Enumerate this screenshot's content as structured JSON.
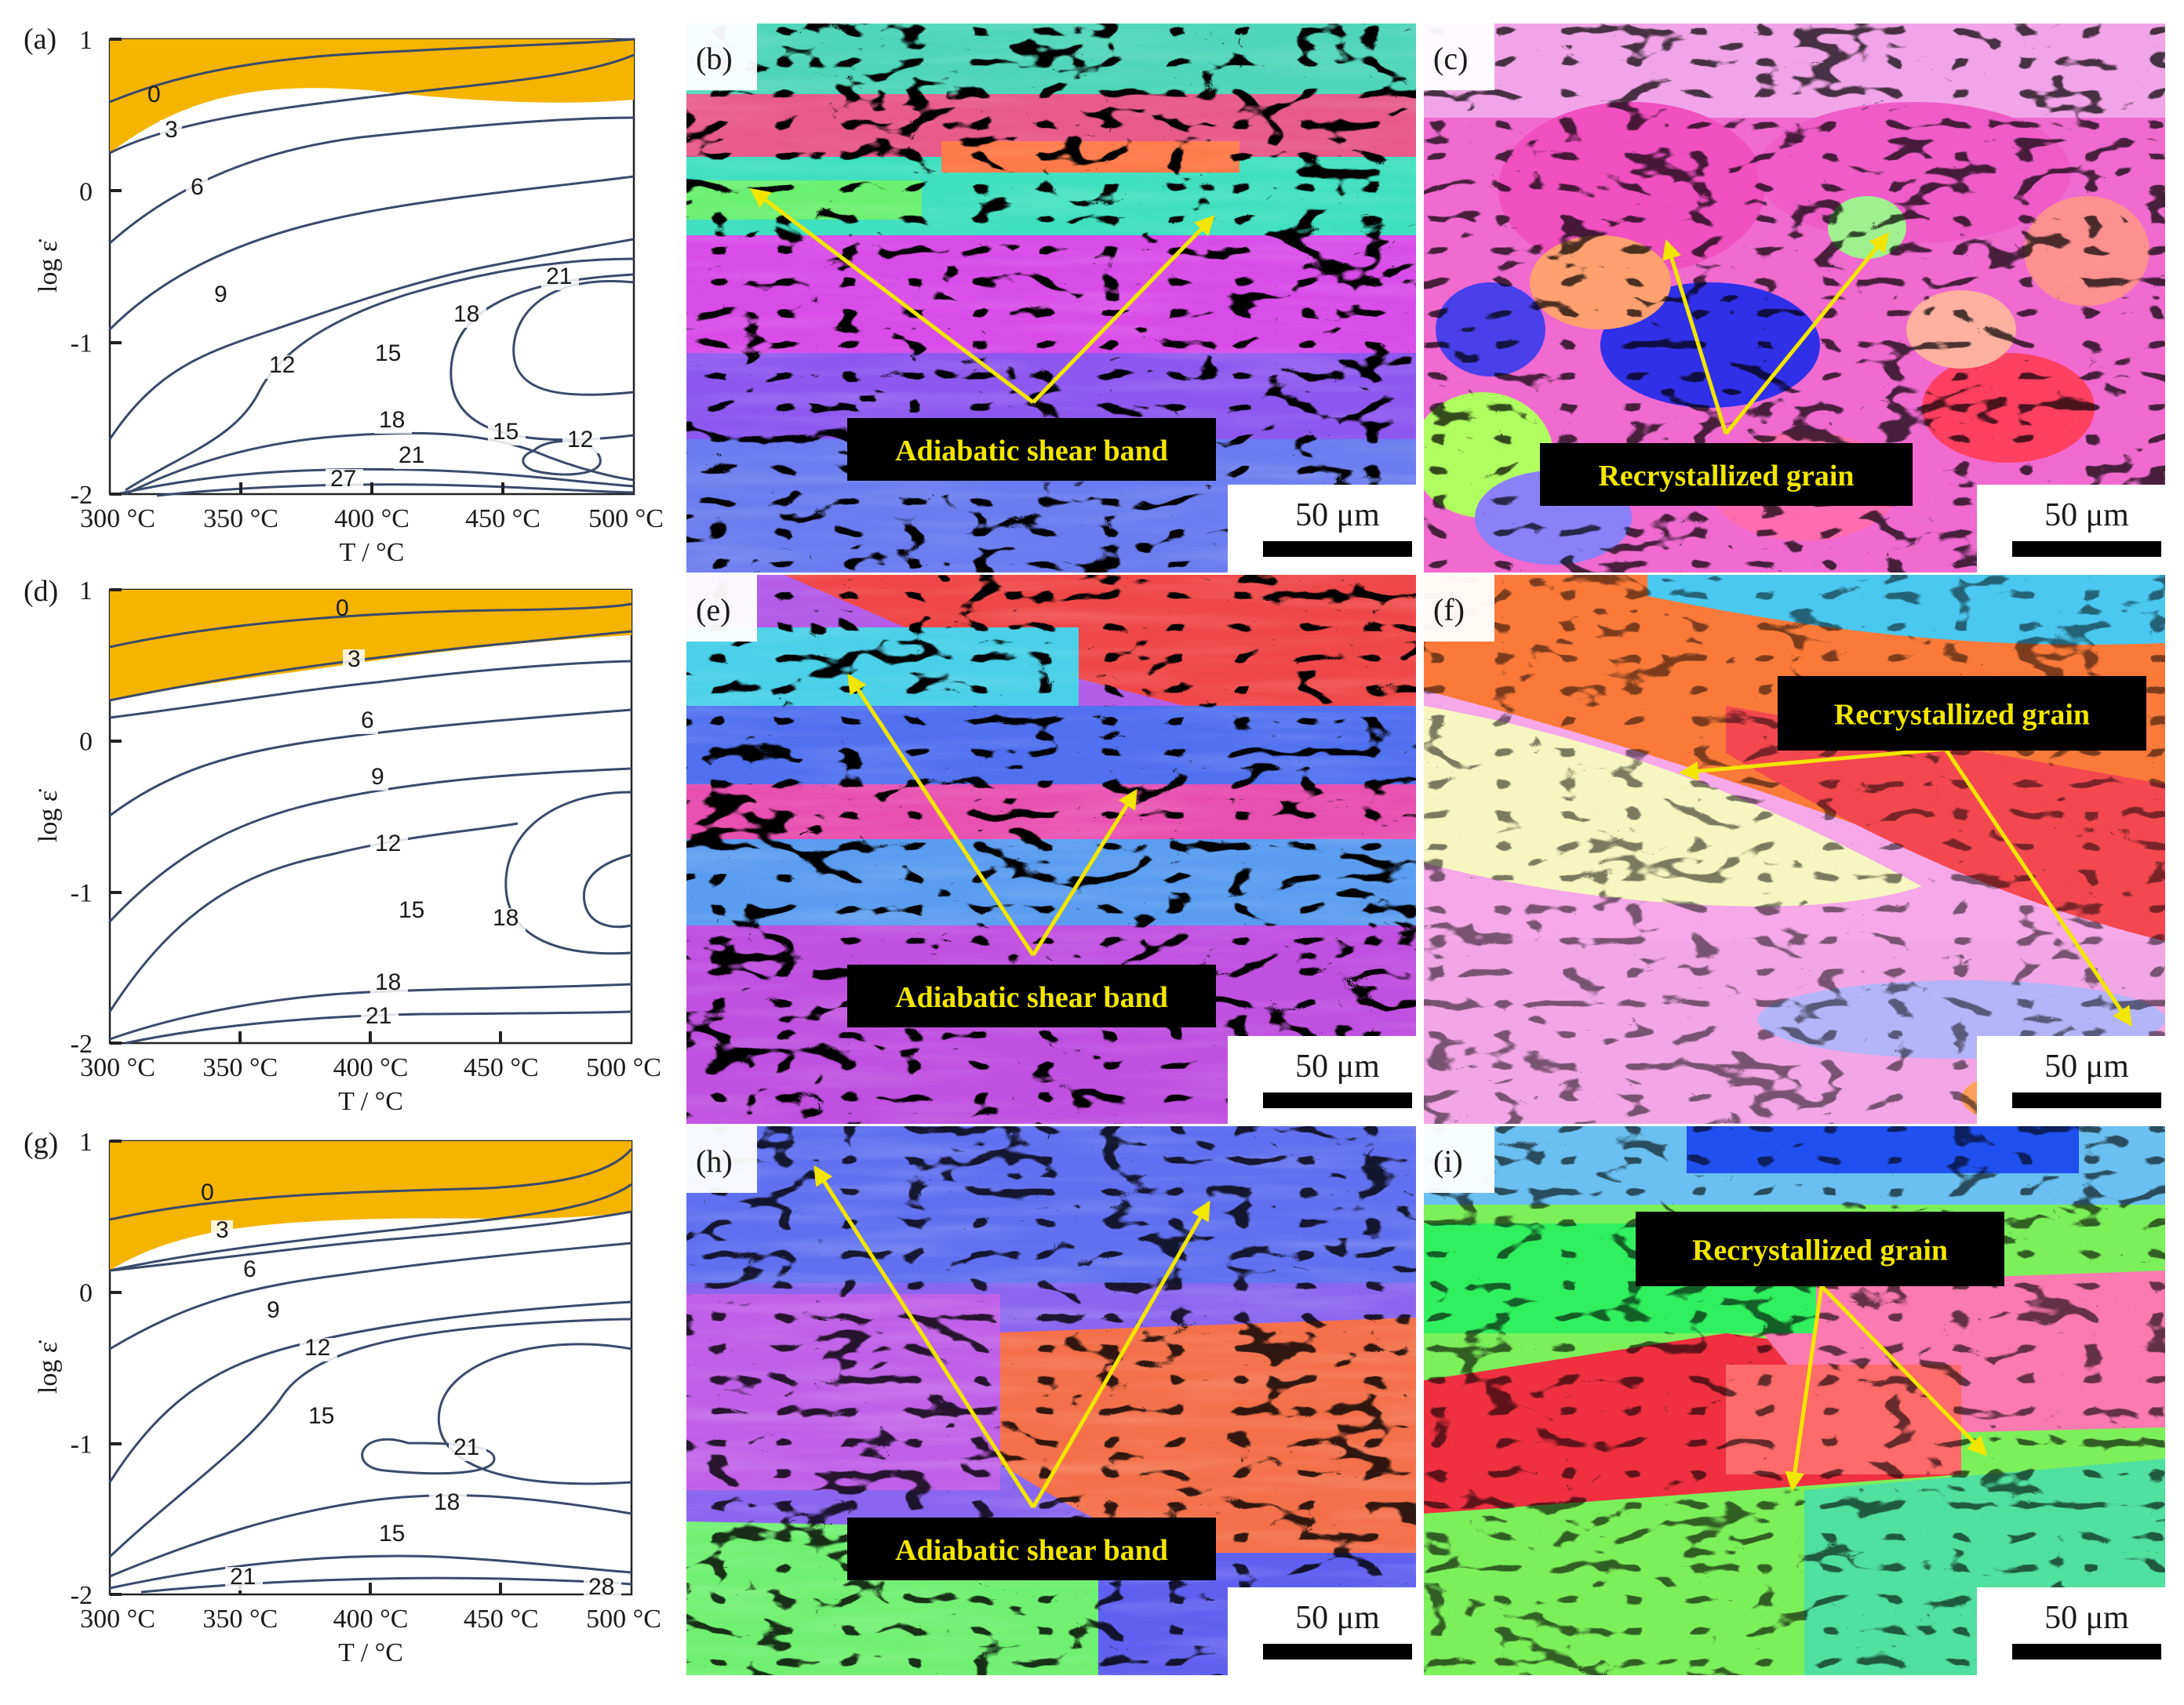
{
  "figure": {
    "plots": [
      {
        "letter": "(a)",
        "y_ticks": [
          "1",
          "0",
          "-1",
          "-2"
        ],
        "x_ticks": [
          "300 °C",
          "350 °C",
          "400 °C",
          "450 °C",
          "500 °C"
        ],
        "xlabel": "T / °C",
        "ylabel": "log ε̇",
        "contour_labels": [
          "0",
          "3",
          "6",
          "9",
          "12",
          "15",
          "18",
          "21",
          "18",
          "21",
          "15",
          "12",
          "27"
        ]
      },
      {
        "letter": "(d)",
        "y_ticks": [
          "1",
          "0",
          "-1",
          "-2"
        ],
        "x_ticks": [
          "300 °C",
          "350 °C",
          "400 °C",
          "450 °C",
          "500 °C"
        ],
        "xlabel": "T / °C",
        "ylabel": "log ε̇",
        "contour_labels": [
          "0",
          "3",
          "6",
          "9",
          "12",
          "15",
          "18",
          "18",
          "21"
        ]
      },
      {
        "letter": "(g)",
        "y_ticks": [
          "1",
          "0",
          "-1",
          "-2"
        ],
        "x_ticks": [
          "300 °C",
          "350 °C",
          "400 °C",
          "450 °C",
          "500 °C"
        ],
        "xlabel": "T / °C",
        "ylabel": "log ε̇",
        "contour_labels": [
          "0",
          "3",
          "6",
          "9",
          "12",
          "15",
          "21",
          "18",
          "15",
          "21",
          "28"
        ]
      }
    ],
    "micrographs": [
      {
        "letter": "(b)",
        "label": "Adiabatic shear band",
        "scale": "50 μm"
      },
      {
        "letter": "(c)",
        "label": "Recrystallized grain",
        "scale": "50 μm"
      },
      {
        "letter": "(e)",
        "label": "Adiabatic shear band",
        "scale": "50 μm"
      },
      {
        "letter": "(f)",
        "label": "Recrystallized grain",
        "scale": "50 μm"
      },
      {
        "letter": "(h)",
        "label": "Adiabatic shear band",
        "scale": "50 μm"
      },
      {
        "letter": "(i)",
        "label": "Recrystallized grain",
        "scale": "50 μm"
      }
    ],
    "colors": {
      "instability": "#f5b400",
      "contour": "#3a4a6b",
      "arrow": "#f2e600",
      "label_text": "#f2e600",
      "label_bg": "#000000"
    }
  }
}
